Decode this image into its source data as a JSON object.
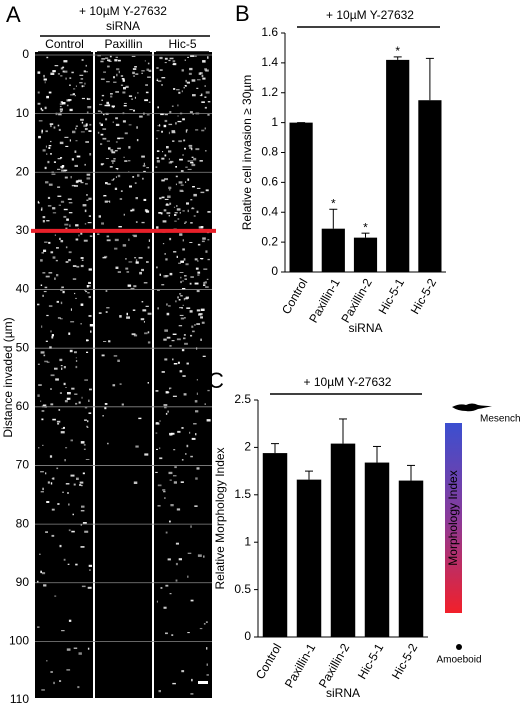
{
  "chart_data": [
    {
      "type": "micrograph",
      "label": "A",
      "title": "+ 10µM Y-27632",
      "group_label": "siRNA",
      "columns": [
        "Control",
        "Paxillin",
        "Hic-5"
      ],
      "ylabel": "Distance invaded (µm)",
      "ylim": [
        0,
        110
      ],
      "yticks": [
        0,
        10,
        20,
        30,
        40,
        50,
        60,
        70,
        80,
        90,
        100,
        110
      ],
      "marker": 30,
      "marker_color": "#e8202a"
    },
    {
      "type": "bar",
      "label": "B",
      "title": "+ 10µM Y-27632",
      "categories": [
        "Control",
        "Paxillin-1",
        "Paxillin-2",
        "Hic-5-1",
        "Hic-5-2"
      ],
      "values": [
        1.0,
        0.29,
        0.23,
        1.42,
        1.15
      ],
      "errors": [
        0,
        0.13,
        0.03,
        0.02,
        0.28
      ],
      "annotations": [
        null,
        "*",
        "*",
        "*",
        null
      ],
      "color": "#000000",
      "ylabel": "Relative cell invasion ≥ 30µm",
      "xlabel": "siRNA",
      "ylim": [
        0,
        1.6
      ],
      "yticks": [
        0,
        0.2,
        0.4,
        0.6,
        0.8,
        1,
        1.2,
        1.4,
        1.6
      ]
    },
    {
      "type": "bar",
      "label": "C",
      "title": "+ 10µM Y-27632",
      "categories": [
        "Control",
        "Paxillin-1",
        "Paxillin-2",
        "Hic-5-1",
        "Hic-5-2"
      ],
      "values": [
        1.94,
        1.66,
        2.04,
        1.84,
        1.65
      ],
      "errors": [
        0.1,
        0.09,
        0.26,
        0.17,
        0.16
      ],
      "color": "#000000",
      "ylabel": "Relative Morphology Index",
      "xlabel": "siRNA",
      "ylim": [
        0,
        2.5
      ],
      "yticks": [
        0,
        0.5,
        1,
        1.5,
        2,
        2.5
      ],
      "scale": {
        "label": "Morphology Index",
        "top": "Mesenchymal",
        "bottom": "Amoeboid"
      }
    }
  ]
}
